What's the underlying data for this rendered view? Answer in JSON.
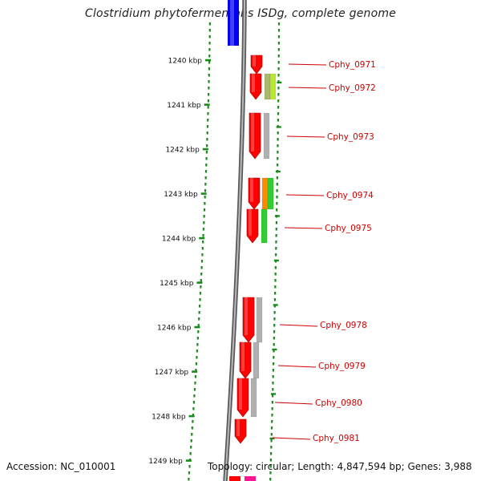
{
  "title": "Clostridium phytofermentans ISDg, complete genome",
  "accession": "Accession: NC_010001",
  "topology": "Topology: circular; Length: 4,847,594 bp; Genes: 3,988",
  "ticks": [
    "1240 kbp",
    "1241 kbp",
    "1242 kbp",
    "1243 kbp",
    "1244 kbp",
    "1245 kbp",
    "1246 kbp",
    "1247 kbp",
    "1248 kbp",
    "1249 kbp"
  ],
  "genes": [
    {
      "label": "Cphy_0971",
      "color": "#ff0000",
      "feature_colors": []
    },
    {
      "label": "Cphy_0972",
      "color": "#ff0000",
      "feature_colors": [
        "#a9b86a",
        "#b8e830"
      ]
    },
    {
      "label": "Cphy_0973",
      "color": "#ff0000",
      "feature_colors": [
        "#b0b0b0"
      ]
    },
    {
      "label": "Cphy_0974",
      "color": "#ff0000",
      "feature_colors": [
        "#ff8c00",
        "#33cc33"
      ]
    },
    {
      "label": "Cphy_0975",
      "color": "#ff0000",
      "feature_colors": [
        "#33cc33"
      ]
    },
    {
      "label": "Cphy_0978",
      "color": "#ff0000",
      "feature_colors": [
        "#b0b0b0"
      ]
    },
    {
      "label": "Cphy_0979",
      "color": "#ff0000",
      "feature_colors": [
        "#b0b0b0"
      ]
    },
    {
      "label": "Cphy_0980",
      "color": "#ff0000",
      "feature_colors": [
        "#b0b0b0"
      ]
    },
    {
      "label": "Cphy_0981",
      "color": "#ff0000",
      "feature_colors": []
    }
  ],
  "colors": {
    "backbone": "#888888",
    "tick": "#1a8a1a",
    "label": "#d00000",
    "upstream_gene": "#0000ee",
    "downstream_gene": "#ff1493"
  }
}
